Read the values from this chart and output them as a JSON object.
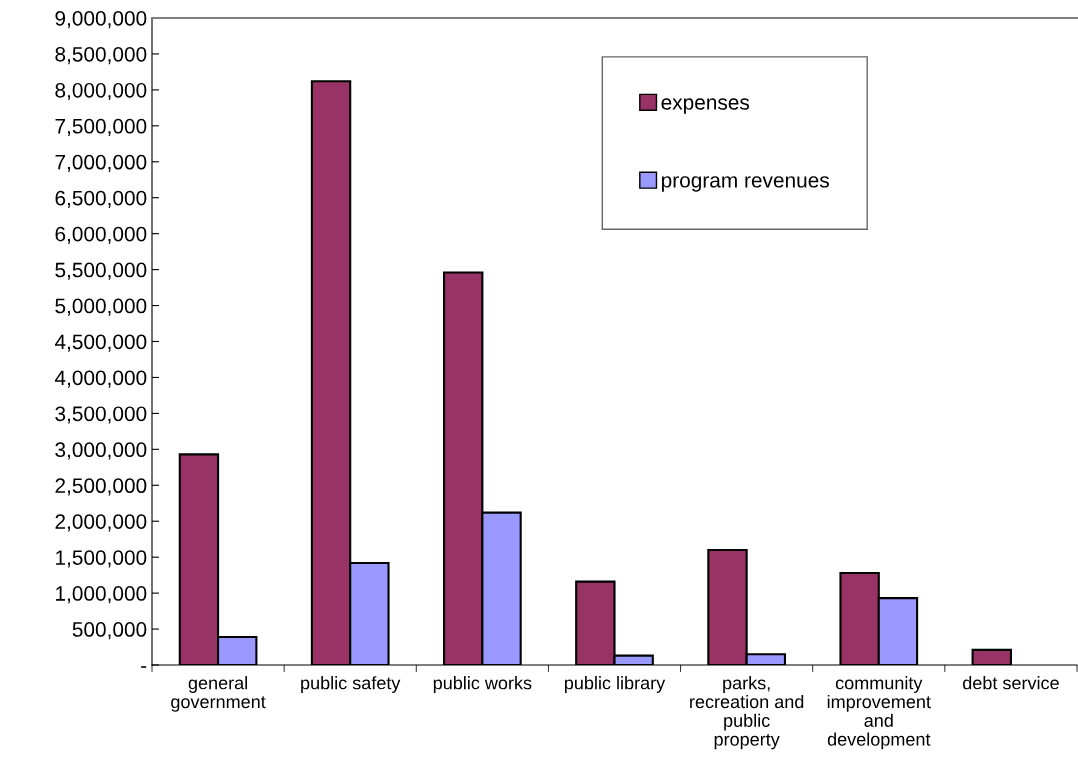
{
  "chart_data": {
    "type": "bar",
    "categories": [
      "general\ngovernment",
      "public safety",
      "public works",
      "public library",
      "parks,\nrecreation and\npublic\nproperty",
      "community\nimprovement\nand\ndevelopment",
      "debt service"
    ],
    "series": [
      {
        "name": "expenses",
        "color": "#993366",
        "values": [
          2930000,
          8120000,
          5460000,
          1160000,
          1600000,
          1280000,
          210000
        ]
      },
      {
        "name": "program revenues",
        "color": "#9999ff",
        "values": [
          390000,
          1420000,
          2120000,
          130000,
          150000,
          930000,
          null
        ]
      }
    ],
    "ylim": [
      0,
      9000000
    ],
    "yticks": [
      {
        "value": 0,
        "label": "-"
      },
      {
        "value": 500000,
        "label": "500,000"
      },
      {
        "value": 1000000,
        "label": "1,000,000"
      },
      {
        "value": 1500000,
        "label": "1,500,000"
      },
      {
        "value": 2000000,
        "label": "2,000,000"
      },
      {
        "value": 2500000,
        "label": "2,500,000"
      },
      {
        "value": 3000000,
        "label": "3,000,000"
      },
      {
        "value": 3500000,
        "label": "3,500,000"
      },
      {
        "value": 4000000,
        "label": "4,000,000"
      },
      {
        "value": 4500000,
        "label": "4,500,000"
      },
      {
        "value": 5000000,
        "label": "5,000,000"
      },
      {
        "value": 5500000,
        "label": "5,500,000"
      },
      {
        "value": 6000000,
        "label": "6,000,000"
      },
      {
        "value": 6500000,
        "label": "6,500,000"
      },
      {
        "value": 7000000,
        "label": "7,000,000"
      },
      {
        "value": 7500000,
        "label": "7,500,000"
      },
      {
        "value": 8000000,
        "label": "8,000,000"
      },
      {
        "value": 8500000,
        "label": "8,500,000"
      },
      {
        "value": 9000000,
        "label": "9,000,000"
      }
    ],
    "legend": "top",
    "grid": false
  }
}
